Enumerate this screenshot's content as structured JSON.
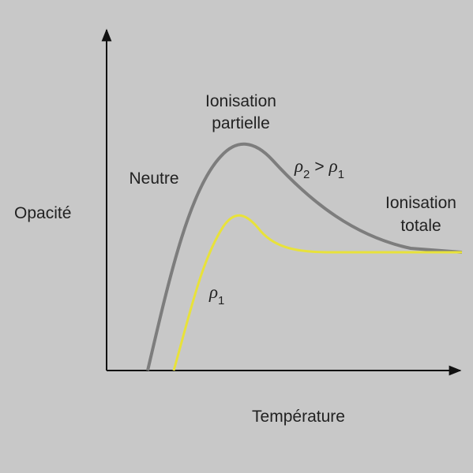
{
  "axes": {
    "y_label": "Opacité",
    "x_label": "Température"
  },
  "regions": {
    "neutral": "Neutre",
    "partial": [
      "Ionisation",
      "partielle"
    ],
    "total": [
      "Ionisation",
      "totale"
    ]
  },
  "curves": {
    "high_density": {
      "symbol": "ρ",
      "subscript": "2"
    },
    "relation": ">",
    "low_density": {
      "symbol": "ρ",
      "subscript": "1"
    }
  }
}
